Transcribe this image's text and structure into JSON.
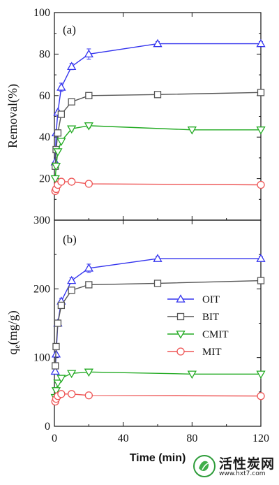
{
  "chart_data": [
    {
      "type": "line",
      "panel_label": "(a)",
      "ylabel": "Removal(%)",
      "xlabel": "",
      "xlim": [
        0,
        120
      ],
      "ylim": [
        0,
        100
      ],
      "yticks": [
        0,
        20,
        40,
        60,
        80,
        100
      ],
      "xticks": [],
      "series": [
        {
          "name": "OIT",
          "color": "#3333ee",
          "marker": "triangle-up",
          "x": [
            0.5,
            1,
            2,
            4,
            10,
            20,
            60,
            120
          ],
          "y": [
            28,
            42,
            52,
            64,
            74,
            80,
            85,
            85
          ],
          "err": [
            0,
            0,
            1,
            2,
            1.5,
            2.5,
            1,
            1
          ]
        },
        {
          "name": "BIT",
          "color": "#555555",
          "marker": "square",
          "x": [
            0.5,
            1,
            2,
            4,
            10,
            20,
            60,
            120
          ],
          "y": [
            26,
            34,
            42,
            51,
            57,
            60,
            60.5,
            61.5
          ],
          "err": [
            0,
            0,
            1,
            1,
            1,
            1,
            1,
            1
          ]
        },
        {
          "name": "CMIT",
          "color": "#22aa22",
          "marker": "triangle-down",
          "x": [
            0.5,
            1,
            2,
            4,
            10,
            20,
            80,
            120
          ],
          "y": [
            20,
            26,
            33,
            38,
            44,
            45.5,
            43.5,
            43.5
          ],
          "err": [
            0,
            0,
            0.5,
            0.5,
            1,
            1,
            0.5,
            0.5
          ]
        },
        {
          "name": "MIT",
          "color": "#ee5555",
          "marker": "circle",
          "x": [
            0.5,
            1,
            2,
            4,
            10,
            20,
            120
          ],
          "y": [
            14,
            15,
            17,
            18.5,
            18.5,
            17.5,
            17
          ],
          "err": [
            0,
            0,
            0,
            0.5,
            0.5,
            0.5,
            0.5
          ]
        }
      ]
    },
    {
      "type": "line",
      "panel_label": "(b)",
      "ylabel": "q",
      "ylabel_sub": "e",
      "ylabel_rest": "(mg/g)",
      "xlabel": "Time (min)",
      "xlim": [
        0,
        120
      ],
      "ylim": [
        0,
        300
      ],
      "yticks": [
        0,
        100,
        200,
        300
      ],
      "xticks": [
        0,
        40,
        80,
        120
      ],
      "legend": "center-right",
      "series": [
        {
          "name": "OIT",
          "color": "#3333ee",
          "marker": "triangle-up",
          "x": [
            0.5,
            1,
            2,
            4,
            10,
            20,
            60,
            120
          ],
          "y": [
            80,
            105,
            150,
            182,
            212,
            230,
            244,
            244
          ],
          "err": [
            0,
            0,
            2,
            4,
            4,
            6,
            3,
            3
          ]
        },
        {
          "name": "BIT",
          "color": "#555555",
          "marker": "square",
          "x": [
            0.5,
            1,
            2,
            4,
            10,
            20,
            60,
            120
          ],
          "y": [
            88,
            116,
            150,
            176,
            198,
            206,
            208,
            212
          ],
          "err": [
            0,
            0,
            2,
            2,
            2,
            2,
            2,
            2
          ]
        },
        {
          "name": "CMIT",
          "color": "#22aa22",
          "marker": "triangle-down",
          "x": [
            0.5,
            1,
            2,
            4,
            10,
            20,
            80,
            120
          ],
          "y": [
            42,
            52,
            63,
            70,
            77,
            79,
            76,
            76
          ],
          "err": [
            0,
            0,
            1,
            1,
            2,
            2,
            1,
            1
          ]
        },
        {
          "name": "MIT",
          "color": "#ee5555",
          "marker": "circle",
          "x": [
            0.5,
            1,
            2,
            4,
            10,
            20,
            120
          ],
          "y": [
            36,
            40,
            44,
            47,
            47,
            45,
            44
          ],
          "err": [
            0,
            0,
            0,
            1,
            1,
            1,
            1
          ]
        }
      ]
    }
  ],
  "watermark": {
    "title": "活性炭网",
    "url": "www.hxt7.com"
  }
}
